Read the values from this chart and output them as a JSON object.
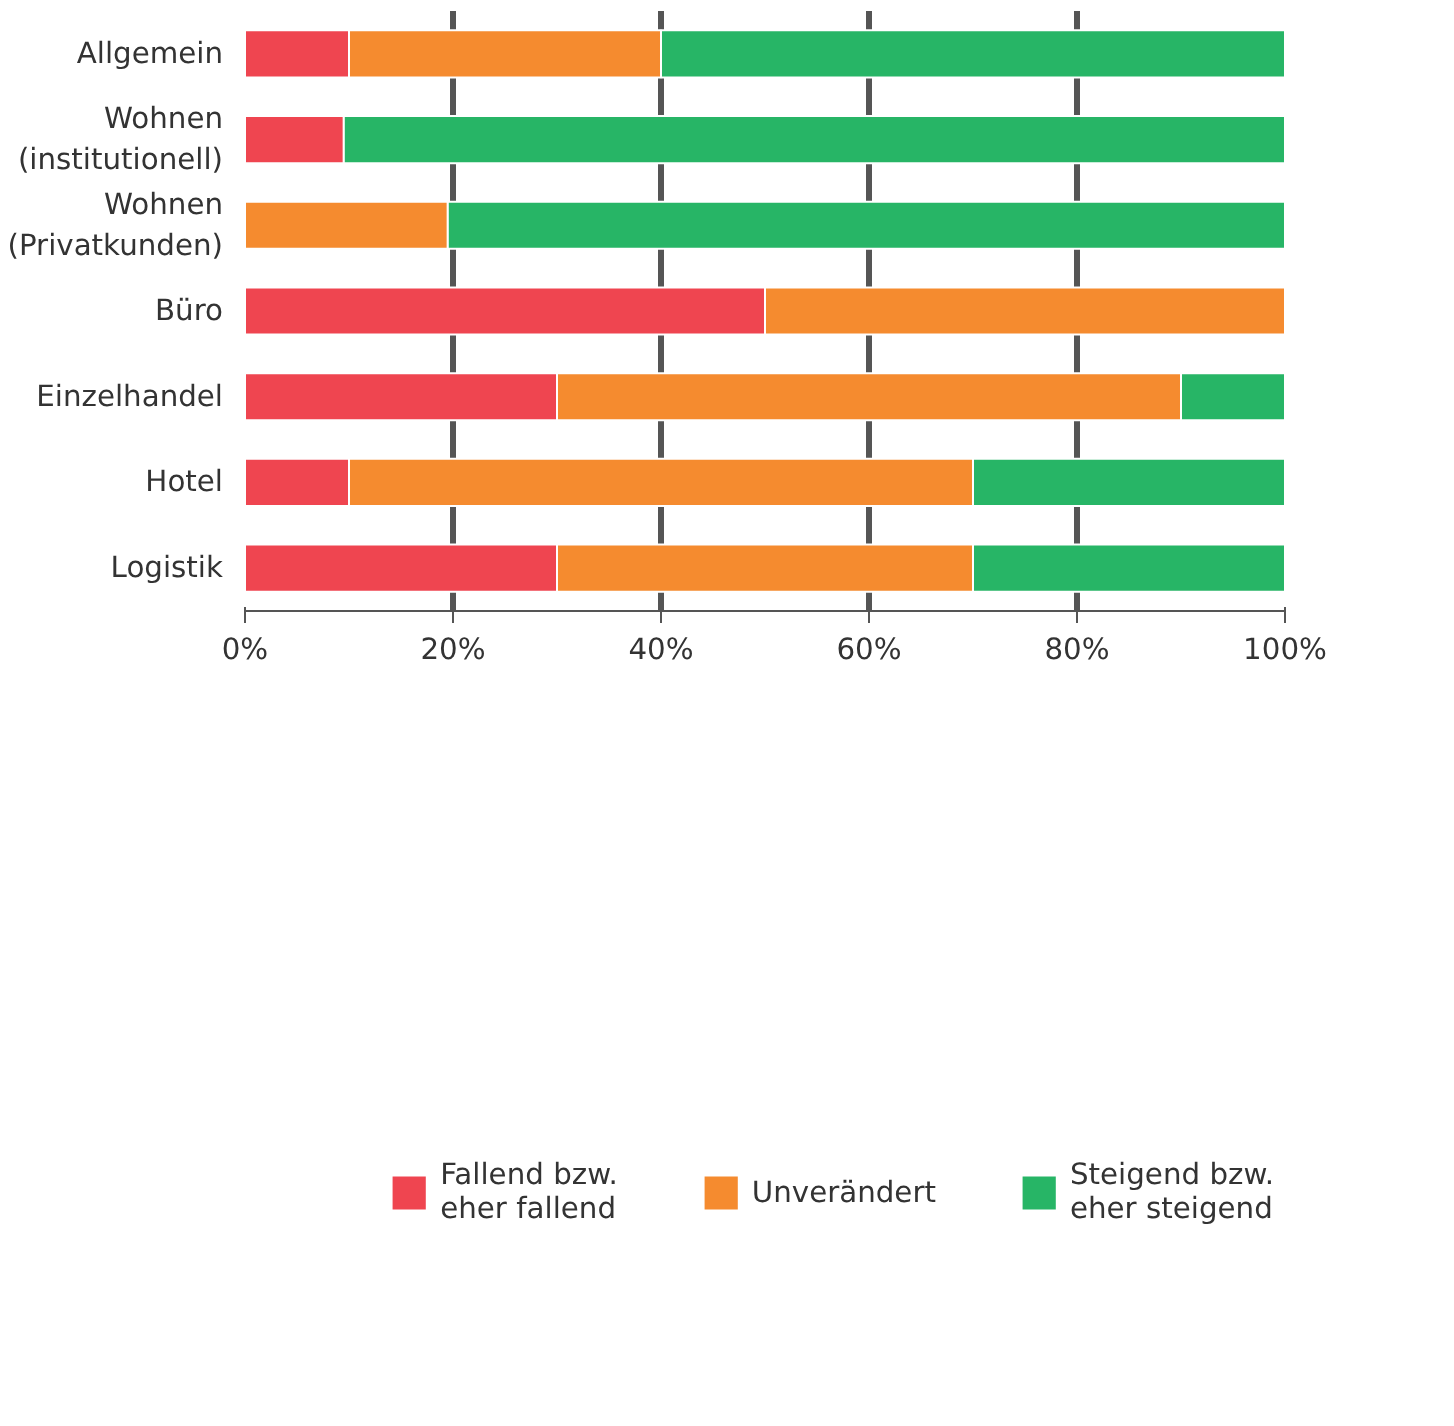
{
  "chart_data": {
    "type": "bar",
    "orientation": "horizontal",
    "stacked": true,
    "categories": [
      "Allgemein",
      "Wohnen\n(institutionell)",
      "Wohnen\n(Privatkunden)",
      "Büro",
      "Einzelhandel",
      "Hotel",
      "Logistik"
    ],
    "series": [
      {
        "name": "Fallend bzw.\neher fallend",
        "color": "#ef4550",
        "values": [
          10,
          9.5,
          0,
          50,
          30,
          10,
          30
        ]
      },
      {
        "name": "Unverändert",
        "color": "#f58b2f",
        "values": [
          30,
          0,
          19.5,
          50,
          60,
          60,
          40
        ]
      },
      {
        "name": "Steigend bzw.\neher steigend",
        "color": "#27b566",
        "values": [
          60,
          90.5,
          80.5,
          0,
          10,
          30,
          30
        ]
      }
    ],
    "xlim": [
      0,
      100
    ],
    "xticks": [
      {
        "value": 0,
        "label": "0%"
      },
      {
        "value": 20,
        "label": "20%"
      },
      {
        "value": 40,
        "label": "40%"
      },
      {
        "value": 60,
        "label": "60%"
      },
      {
        "value": 80,
        "label": "80%"
      },
      {
        "value": 100,
        "label": "100%"
      }
    ],
    "grid": "x",
    "legend": "bottom"
  }
}
